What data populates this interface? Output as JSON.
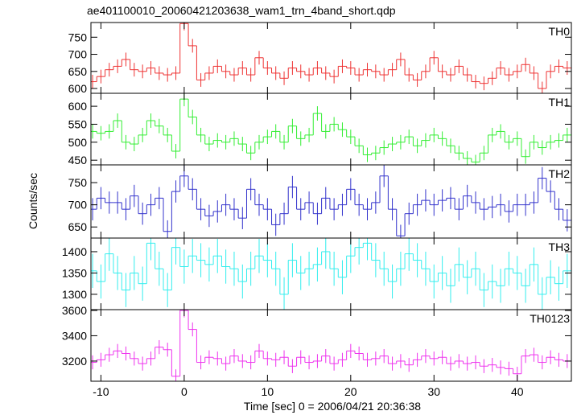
{
  "chart_data": {
    "type": "step",
    "title": "ae401100010_20060421203638_wam1_trn_4band_short.qdp",
    "xlabel": "Time [sec] 0 = 2006/04/21 20:36:38",
    "ylabel": "Counts/sec",
    "x": [
      -11,
      -10,
      -9,
      -8,
      -7,
      -6,
      -5,
      -4,
      -3,
      -2,
      -1,
      0,
      1,
      2,
      3,
      4,
      5,
      6,
      7,
      8,
      9,
      10,
      11,
      12,
      13,
      14,
      15,
      16,
      17,
      18,
      19,
      20,
      21,
      22,
      23,
      24,
      25,
      26,
      27,
      28,
      29,
      30,
      31,
      32,
      33,
      34,
      35,
      36,
      37,
      38,
      39,
      40,
      41,
      42,
      43,
      44,
      45,
      46
    ],
    "xlim": [
      -11.2,
      46.5
    ],
    "xticks": [
      -10,
      0,
      10,
      20,
      30,
      40
    ],
    "panels": [
      {
        "name": "TH0",
        "color": "#ee3333",
        "error": 20,
        "ylim": [
          586,
          793
        ],
        "yticks": [
          600,
          650,
          700,
          750
        ],
        "values": [
          620,
          635,
          655,
          665,
          685,
          655,
          650,
          660,
          645,
          640,
          645,
          790,
          725,
          625,
          645,
          665,
          650,
          640,
          660,
          640,
          690,
          660,
          645,
          630,
          660,
          650,
          640,
          660,
          645,
          635,
          665,
          660,
          640,
          655,
          650,
          640,
          655,
          685,
          640,
          625,
          650,
          690,
          650,
          640,
          665,
          640,
          620,
          615,
          630,
          660,
          640,
          650,
          670,
          645,
          600,
          650,
          665,
          660
        ]
      },
      {
        "name": "TH1",
        "color": "#33ee33",
        "error": 20,
        "ylim": [
          437,
          636
        ],
        "yticks": [
          450,
          500,
          550,
          600
        ],
        "values": [
          530,
          525,
          530,
          560,
          500,
          495,
          520,
          560,
          545,
          520,
          475,
          620,
          570,
          520,
          495,
          505,
          500,
          510,
          495,
          470,
          500,
          515,
          530,
          500,
          545,
          510,
          520,
          580,
          530,
          550,
          535,
          515,
          490,
          465,
          470,
          485,
          495,
          500,
          515,
          490,
          505,
          520,
          510,
          490,
          470,
          455,
          445,
          470,
          520,
          530,
          500,
          510,
          460,
          500,
          485,
          500,
          505,
          520
        ]
      },
      {
        "name": "TH2",
        "color": "#3333cc",
        "error": 25,
        "ylim": [
          625,
          790
        ],
        "yticks": [
          650,
          700,
          750
        ],
        "values": [
          690,
          715,
          705,
          705,
          690,
          720,
          680,
          700,
          715,
          640,
          730,
          765,
          735,
          690,
          675,
          685,
          700,
          690,
          670,
          735,
          700,
          690,
          655,
          680,
          740,
          690,
          705,
          680,
          715,
          690,
          700,
          735,
          700,
          690,
          705,
          765,
          690,
          630,
          680,
          700,
          710,
          700,
          710,
          715,
          690,
          720,
          705,
          690,
          695,
          700,
          685,
          700,
          700,
          705,
          760,
          730,
          690,
          665
        ]
      },
      {
        "name": "TH3",
        "color": "#33eeee",
        "error": 40,
        "ylim": [
          1264,
          1432
        ],
        "yticks": [
          1300,
          1350,
          1400
        ],
        "values": [
          1355,
          1330,
          1395,
          1350,
          1310,
          1350,
          1325,
          1420,
          1360,
          1310,
          1410,
          1365,
          1390,
          1380,
          1370,
          1390,
          1365,
          1360,
          1330,
          1360,
          1390,
          1380,
          1360,
          1300,
          1380,
          1350,
          1360,
          1370,
          1400,
          1360,
          1340,
          1390,
          1410,
          1420,
          1380,
          1360,
          1330,
          1360,
          1395,
          1380,
          1360,
          1330,
          1350,
          1320,
          1370,
          1340,
          1360,
          1310,
          1330,
          1320,
          1360,
          1350,
          1320,
          1370,
          1300,
          1340,
          1325,
          1355
        ]
      },
      {
        "name": "TH0123",
        "color": "#ee33ee",
        "error": 55,
        "ylim": [
          3041,
          3606
        ],
        "yticks": [
          3200,
          3400,
          3600
        ],
        "values": [
          3190,
          3210,
          3250,
          3280,
          3260,
          3220,
          3180,
          3220,
          3310,
          3290,
          3080,
          3600,
          3450,
          3190,
          3230,
          3220,
          3180,
          3240,
          3200,
          3190,
          3280,
          3220,
          3210,
          3230,
          3160,
          3230,
          3190,
          3200,
          3240,
          3180,
          3210,
          3280,
          3260,
          3210,
          3220,
          3240,
          3180,
          3200,
          3170,
          3210,
          3240,
          3220,
          3230,
          3180,
          3200,
          3180,
          3190,
          3160,
          3170,
          3150,
          3140,
          3100,
          3240,
          3250,
          3190,
          3230,
          3210,
          3200
        ]
      }
    ]
  }
}
